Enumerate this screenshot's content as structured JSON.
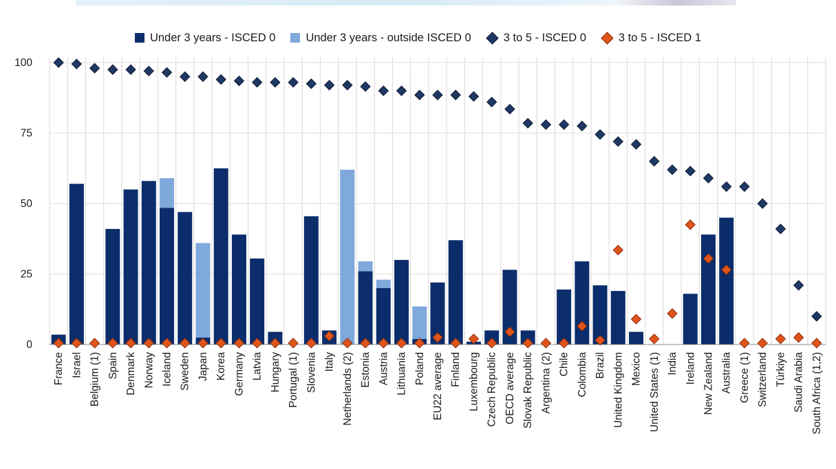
{
  "chart_data": {
    "type": "bar",
    "stacked": true,
    "title": "",
    "xlabel": "",
    "ylabel": "",
    "ylim": [
      0,
      100
    ],
    "yticks": [
      0,
      25,
      50,
      75,
      100
    ],
    "grid": "vertical category separators",
    "legend_position": "top-center",
    "categories": [
      "France",
      "Israel",
      "Belgium (1)",
      "Spain",
      "Denmark",
      "Norway",
      "Iceland",
      "Sweden",
      "Japan",
      "Korea",
      "Germany",
      "Latvia",
      "Hungary",
      "Portugal (1)",
      "Slovenia",
      "Italy",
      "Netherlands (2)",
      "Estonia",
      "Austria",
      "Lithuania",
      "Poland",
      "EU22 average",
      "Finland",
      "Luxembourg",
      "Czech Republic",
      "OECD average",
      "Slovak Republic",
      "Argentina (2)",
      "Chile",
      "Colombia",
      "Brazil",
      "United Kingdom",
      "Mexico",
      "United States (1)",
      "India",
      "Ireland",
      "New Zealand",
      "Australia",
      "Greece (1)",
      "Switzerland",
      "Türkiye",
      "Saudi Arabia",
      "South Africa (1,2)"
    ],
    "series": [
      {
        "name": "Under 3 years - ISCED 0",
        "kind": "bar",
        "color": "#0b2d6b",
        "values": [
          3.5,
          57,
          null,
          41,
          55,
          58,
          48.5,
          47,
          2.5,
          62.5,
          39,
          30.5,
          4.5,
          null,
          45.5,
          5,
          null,
          26,
          20,
          30,
          2,
          22,
          37,
          1,
          5,
          26.5,
          5,
          null,
          19.5,
          29.5,
          21,
          19,
          4.5,
          null,
          null,
          18,
          39,
          45,
          null,
          null,
          null,
          null,
          null
        ]
      },
      {
        "name": "Under 3 years - outside ISCED 0",
        "kind": "bar",
        "color": "#7fa8db",
        "values": [
          null,
          null,
          null,
          null,
          null,
          null,
          10.5,
          null,
          33.5,
          null,
          null,
          null,
          null,
          null,
          null,
          null,
          62,
          3.5,
          3,
          null,
          11.5,
          null,
          null,
          null,
          null,
          null,
          null,
          null,
          null,
          null,
          null,
          null,
          null,
          null,
          null,
          null,
          null,
          null,
          null,
          null,
          null,
          null,
          null
        ]
      },
      {
        "name": "3 to 5 - ISCED 0",
        "kind": "marker",
        "color": "#1f3864",
        "values": [
          100,
          99.5,
          98,
          97.5,
          97.5,
          97,
          96.5,
          95,
          95,
          94,
          93.5,
          93,
          93,
          93,
          92.5,
          92,
          92,
          91.5,
          90,
          90,
          88.5,
          88.5,
          88.5,
          88,
          86,
          83.5,
          78.5,
          78,
          78,
          77.5,
          74.5,
          72,
          71,
          65,
          62,
          61.5,
          59,
          56,
          56,
          50,
          41,
          21,
          10
        ]
      },
      {
        "name": "3 to 5 - ISCED 1",
        "kind": "marker",
        "color": "#e0541b",
        "values": [
          0.5,
          0.5,
          0.5,
          0.5,
          0.5,
          0.5,
          0.5,
          0.5,
          0.5,
          0.5,
          0.5,
          0.5,
          0.5,
          0.5,
          0.5,
          3,
          0.5,
          0.5,
          0.5,
          0.5,
          0.5,
          2.5,
          0.5,
          2,
          0.5,
          4.5,
          0.5,
          0.5,
          0.5,
          6.5,
          1.5,
          33.5,
          9,
          2,
          11,
          42.5,
          30.5,
          26.5,
          0.5,
          0.5,
          2,
          2.5,
          0.5
        ]
      }
    ]
  }
}
